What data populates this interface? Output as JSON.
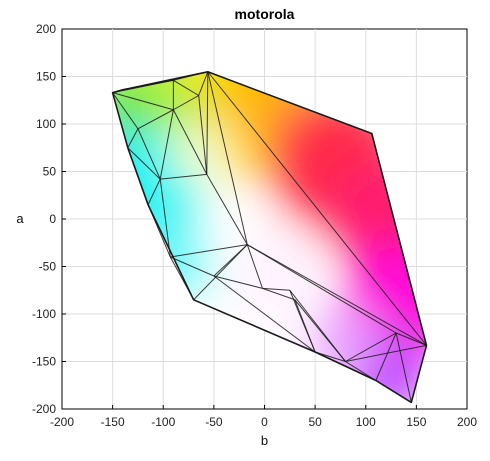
{
  "chart_data": {
    "type": "gamut-3d-hull",
    "title": "motorola",
    "xlabel": "b",
    "ylabel": "a",
    "xlim": [
      -200,
      200
    ],
    "ylim": [
      -200,
      200
    ],
    "xticks": [
      -200,
      -150,
      -100,
      -50,
      0,
      50,
      100,
      150,
      200
    ],
    "yticks": [
      -200,
      -150,
      -100,
      -50,
      0,
      50,
      100,
      150,
      200
    ],
    "grid": true,
    "vertices": [
      {
        "b": -150,
        "a": 133
      },
      {
        "b": -140,
        "a": 136
      },
      {
        "b": -56,
        "a": 155
      },
      {
        "b": 106,
        "a": 90
      },
      {
        "b": 160,
        "a": -133
      },
      {
        "b": 145,
        "a": -193
      },
      {
        "b": 110,
        "a": -170
      },
      {
        "b": 50,
        "a": -140
      },
      {
        "b": -70,
        "a": -85
      },
      {
        "b": -115,
        "a": 15
      },
      {
        "b": -135,
        "a": 75
      },
      {
        "b": -90,
        "a": 146
      },
      {
        "b": -125,
        "a": 95
      },
      {
        "b": -90,
        "a": 115
      },
      {
        "b": -65,
        "a": 130
      },
      {
        "b": -103,
        "a": 42
      },
      {
        "b": -57,
        "a": 47
      },
      {
        "b": -93,
        "a": -40
      },
      {
        "b": -17,
        "a": -27
      },
      {
        "b": -50,
        "a": -60
      },
      {
        "b": -2,
        "a": -73
      },
      {
        "b": 30,
        "a": -85
      },
      {
        "b": 80,
        "a": -150
      },
      {
        "b": 130,
        "a": -120
      },
      {
        "b": 25,
        "a": -75
      }
    ],
    "colors": {
      "red": "#ff2a4a",
      "magenta": "#ff00d8",
      "yellow": "#ffe000",
      "green": "#33e000",
      "cyan": "#00f2f2",
      "violet": "#c040ff",
      "white": "#ffffff",
      "edge": "#1a1a1a",
      "grid": "#dddddd"
    }
  }
}
